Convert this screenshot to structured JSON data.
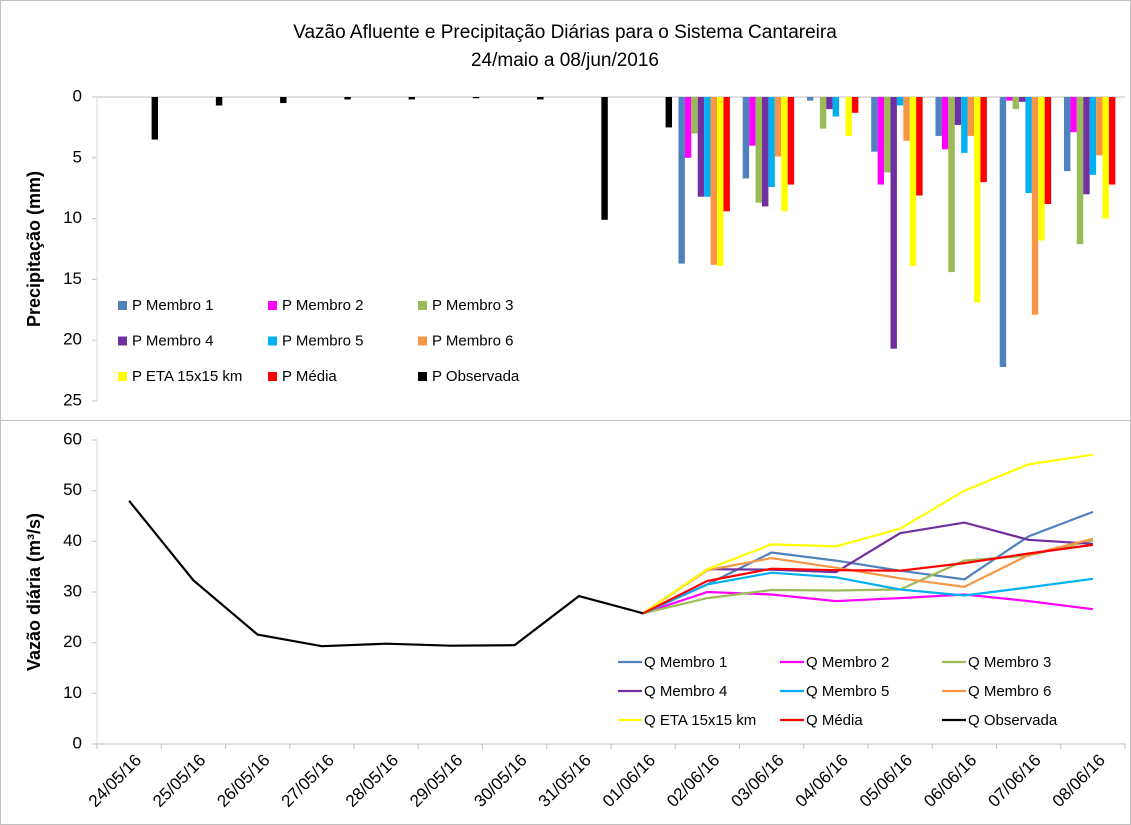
{
  "chart_data": [
    {
      "type": "bar",
      "title": "Vazão Afluente e Precipitação Diárias para o Sistema Cantareira",
      "subtitle": "24/maio a 08/jun/2016",
      "y_label": "Precipitação (mm)",
      "ylim": [
        0,
        25
      ],
      "yticks": [
        0,
        5,
        10,
        15,
        20,
        25
      ],
      "y_inverted": true,
      "legend": "lower left",
      "categories": [
        null,
        null,
        null,
        null,
        null,
        null,
        null,
        null,
        null,
        null,
        null,
        null,
        null,
        null,
        null,
        null
      ],
      "series": [
        {
          "name": "P Membro 1",
          "color": "#4f81bd",
          "values": [
            null,
            null,
            null,
            null,
            null,
            null,
            null,
            null,
            null,
            13.7,
            6.7,
            0.3,
            4.5,
            3.2,
            22.2,
            6.1
          ]
        },
        {
          "name": "P Membro 2",
          "color": "#ff00ff",
          "values": [
            null,
            null,
            null,
            null,
            null,
            null,
            null,
            null,
            null,
            5.0,
            4.0,
            0.0,
            7.2,
            4.3,
            0.3,
            2.9
          ]
        },
        {
          "name": "P Membro 3",
          "color": "#9bbb59",
          "values": [
            null,
            null,
            null,
            null,
            null,
            null,
            null,
            null,
            null,
            3.0,
            8.7,
            2.6,
            6.2,
            14.4,
            1.0,
            12.1
          ]
        },
        {
          "name": "P Membro 4",
          "color": "#7030a0",
          "values": [
            null,
            null,
            null,
            null,
            null,
            null,
            null,
            null,
            null,
            8.2,
            9.0,
            1.0,
            20.7,
            2.3,
            0.4,
            8.0
          ]
        },
        {
          "name": "P Membro 5",
          "color": "#00b0f0",
          "values": [
            null,
            null,
            null,
            null,
            null,
            null,
            null,
            null,
            null,
            8.2,
            7.4,
            1.6,
            0.7,
            4.6,
            7.9,
            6.4
          ]
        },
        {
          "name": "P Membro 6",
          "color": "#f79646",
          "values": [
            null,
            null,
            null,
            null,
            null,
            null,
            null,
            null,
            null,
            13.8,
            4.9,
            0.0,
            3.6,
            3.2,
            17.9,
            4.8
          ]
        },
        {
          "name": "P ETA 15x15 km",
          "color": "#ffff00",
          "values": [
            null,
            null,
            null,
            null,
            null,
            null,
            null,
            null,
            null,
            13.9,
            9.4,
            3.2,
            13.9,
            16.9,
            11.8,
            10.0
          ]
        },
        {
          "name": "P Média",
          "color": "#ff0000",
          "values": [
            null,
            null,
            null,
            null,
            null,
            null,
            null,
            null,
            null,
            9.4,
            7.2,
            1.3,
            8.1,
            7.0,
            8.8,
            7.2
          ]
        },
        {
          "name": "P Observada",
          "color": "#000000",
          "values": [
            3.5,
            0.7,
            0.5,
            0.2,
            0.2,
            0.1,
            0.2,
            10.1,
            2.5,
            null,
            null,
            null,
            null,
            null,
            null,
            null
          ]
        }
      ]
    },
    {
      "type": "line",
      "y_label": "Vazão diária (m³/s)",
      "ylim": [
        0,
        60
      ],
      "yticks": [
        0,
        10,
        20,
        30,
        40,
        50,
        60
      ],
      "legend": "lower right",
      "categories": [
        "24/05/16",
        "25/05/16",
        "26/05/16",
        "27/05/16",
        "28/05/16",
        "29/05/16",
        "30/05/16",
        "31/05/16",
        "01/06/16",
        "02/06/16",
        "03/06/16",
        "04/06/16",
        "05/06/16",
        "06/06/16",
        "07/06/16",
        "08/06/16"
      ],
      "series": [
        {
          "name": "Q Membro 1",
          "color": "#4f81bd",
          "values": [
            null,
            null,
            null,
            null,
            null,
            null,
            null,
            null,
            25.8,
            31.5,
            37.8,
            36.2,
            34.2,
            32.5,
            41.0,
            45.8
          ]
        },
        {
          "name": "Q Membro 2",
          "color": "#ff00ff",
          "values": [
            null,
            null,
            null,
            null,
            null,
            null,
            null,
            null,
            25.8,
            30.0,
            29.5,
            28.2,
            28.8,
            29.5,
            28.2,
            26.6
          ]
        },
        {
          "name": "Q Membro 3",
          "color": "#9bbb59",
          "values": [
            null,
            null,
            null,
            null,
            null,
            null,
            null,
            null,
            25.8,
            28.8,
            30.4,
            30.3,
            30.5,
            36.2,
            37.2,
            40.2
          ]
        },
        {
          "name": "Q Membro 4",
          "color": "#7030a0",
          "values": [
            null,
            null,
            null,
            null,
            null,
            null,
            null,
            null,
            25.8,
            34.5,
            34.4,
            33.9,
            41.6,
            43.7,
            40.3,
            39.5
          ]
        },
        {
          "name": "Q Membro 5",
          "color": "#00b0f0",
          "values": [
            null,
            null,
            null,
            null,
            null,
            null,
            null,
            null,
            25.8,
            31.5,
            33.8,
            32.9,
            30.5,
            29.3,
            30.9,
            32.6
          ]
        },
        {
          "name": "Q Membro 6",
          "color": "#f79646",
          "values": [
            null,
            null,
            null,
            null,
            null,
            null,
            null,
            null,
            25.8,
            34.3,
            36.7,
            34.8,
            32.7,
            31.0,
            37.3,
            40.5
          ]
        },
        {
          "name": "Q ETA 15x15 km",
          "color": "#ffff00",
          "values": [
            null,
            null,
            null,
            null,
            null,
            null,
            null,
            null,
            25.8,
            34.5,
            39.4,
            39.0,
            42.5,
            50.0,
            55.2,
            57.1
          ]
        },
        {
          "name": "Q Média",
          "color": "#ff0000",
          "values": [
            null,
            null,
            null,
            null,
            null,
            null,
            null,
            null,
            25.8,
            32.2,
            34.6,
            34.3,
            34.2,
            35.7,
            37.6,
            39.3
          ]
        },
        {
          "name": "Q Observada",
          "color": "#000000",
          "values": [
            48.0,
            32.3,
            21.6,
            19.3,
            19.8,
            19.4,
            19.5,
            29.2,
            25.8,
            null,
            null,
            null,
            null,
            null,
            null,
            null
          ]
        }
      ]
    }
  ]
}
